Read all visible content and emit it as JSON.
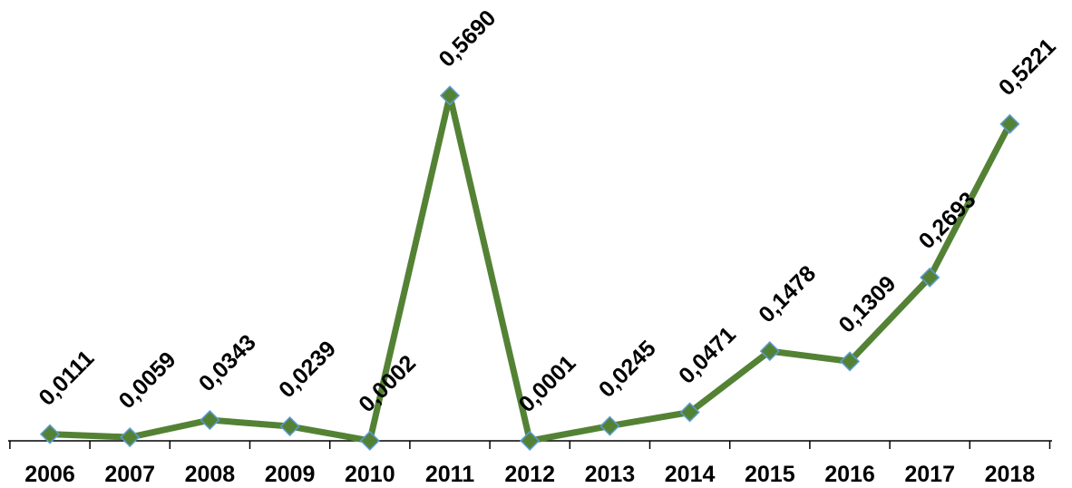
{
  "chart_data": {
    "type": "line",
    "title": "",
    "xlabel": "",
    "ylabel": "",
    "categories": [
      "2006",
      "2007",
      "2008",
      "2009",
      "2010",
      "2011",
      "2012",
      "2013",
      "2014",
      "2015",
      "2016",
      "2017",
      "2018"
    ],
    "series": [
      {
        "values": [
          0.0111,
          0.0059,
          0.0343,
          0.0239,
          0.0002,
          0.569,
          0.0001,
          0.0245,
          0.0471,
          0.1478,
          0.1309,
          0.2693,
          0.5221
        ],
        "labels": [
          "0,0111",
          "0,0059",
          "0,0343",
          "0,0239",
          "0,0002",
          "0,5690",
          "0,0001",
          "0,0245",
          "0,0471",
          "0,1478",
          "0,1309",
          "0,2693",
          "0,5221"
        ]
      }
    ],
    "ylim": [
      0,
      0.6
    ],
    "grid": false,
    "legend": "none",
    "colors": {
      "line": "#548235",
      "marker_fill": "#548235",
      "marker_stroke": "#5b9bd5",
      "axis": "#000000",
      "text": "#000000"
    }
  }
}
